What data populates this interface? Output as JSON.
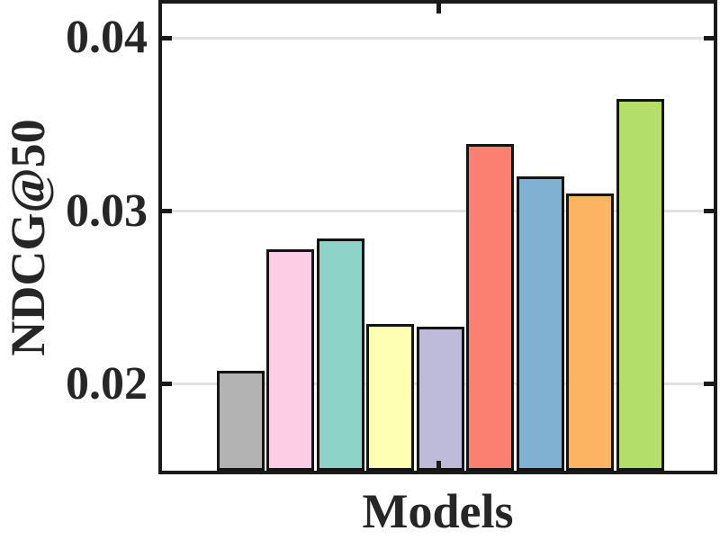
{
  "chart_data": {
    "type": "bar",
    "title": "",
    "xlabel": "Models",
    "ylabel": "NDCG@50",
    "ylim": [
      0.015,
      0.042
    ],
    "yticks": [
      0.02,
      0.03,
      0.04
    ],
    "ytick_labels": [
      "0.02",
      "0.03",
      "0.04"
    ],
    "grid": "horizontal-gridlines-on",
    "legend": "none",
    "categories": [
      "",
      "",
      "",
      "",
      "",
      "",
      "",
      "",
      ""
    ],
    "bar_edge_color": "#141414",
    "gridline_color": "#e2e2e2",
    "axis_color": "#1a1a1a",
    "bars": [
      {
        "name": "bar-1",
        "color": "#b3b3b3",
        "value": 0.0208
      },
      {
        "name": "bar-2",
        "color": "#fccde5",
        "value": 0.0278
      },
      {
        "name": "bar-3",
        "color": "#8dd3c7",
        "value": 0.0284
      },
      {
        "name": "bar-4",
        "color": "#ffffb3",
        "value": 0.0235
      },
      {
        "name": "bar-5",
        "color": "#bebada",
        "value": 0.0233
      },
      {
        "name": "bar-6",
        "color": "#fb8072",
        "value": 0.0339
      },
      {
        "name": "bar-7",
        "color": "#80b1d3",
        "value": 0.032
      },
      {
        "name": "bar-8",
        "color": "#fdb462",
        "value": 0.031
      },
      {
        "name": "bar-9",
        "color": "#b3de69",
        "value": 0.0365
      }
    ]
  }
}
